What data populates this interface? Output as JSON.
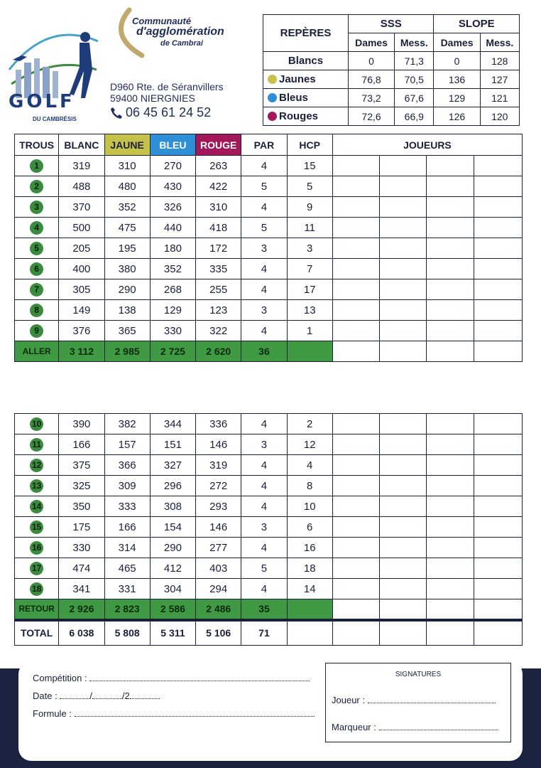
{
  "club": {
    "logo_word": "GOLF",
    "logo_sub": "DU CAMBRÉSIS",
    "partner_line1": "Communauté",
    "partner_line2": "d'agglomération",
    "partner_line3": "de Cambrai",
    "address_line1": "D960 Rte. de Séranvillers",
    "address_line2": "59400 NIERGNIES",
    "phone": "06 45 61 24 52",
    "phone_icon": "phone-icon"
  },
  "reperes": {
    "header": "REPÈRES",
    "sss": "SSS",
    "slope": "SLOPE",
    "dames": "Dames",
    "mess": "Mess.",
    "rows": [
      {
        "name": "Blancs",
        "sss_dames": "0",
        "sss_mess": "71,3",
        "slope_dames": "0",
        "slope_mess": "128"
      },
      {
        "name": "Jaunes",
        "sss_dames": "76,8",
        "sss_mess": "70,5",
        "slope_dames": "136",
        "slope_mess": "127"
      },
      {
        "name": "Bleus",
        "sss_dames": "73,2",
        "sss_mess": "67,6",
        "slope_dames": "129",
        "slope_mess": "121"
      },
      {
        "name": "Rouges",
        "sss_dames": "72,6",
        "sss_mess": "66,9",
        "slope_dames": "126",
        "slope_mess": "120"
      }
    ]
  },
  "colors": {
    "jaune": "#c5c14a",
    "bleu": "#2f8fd6",
    "rouge": "#a3185a",
    "green": "#3f9a43",
    "navy": "#1b2340"
  },
  "headers": {
    "trous": "TROUS",
    "blanc": "BLANC",
    "jaune": "JAUNE",
    "bleu": "BLEU",
    "rouge": "ROUGE",
    "par": "PAR",
    "hcp": "HCP",
    "joueurs": "JOUEURS"
  },
  "front": [
    [
      "1",
      "319",
      "310",
      "270",
      "263",
      "4",
      "15"
    ],
    [
      "2",
      "488",
      "480",
      "430",
      "422",
      "5",
      "5"
    ],
    [
      "3",
      "370",
      "352",
      "326",
      "310",
      "4",
      "9"
    ],
    [
      "4",
      "500",
      "475",
      "440",
      "418",
      "5",
      "11"
    ],
    [
      "5",
      "205",
      "195",
      "180",
      "172",
      "3",
      "3"
    ],
    [
      "6",
      "400",
      "380",
      "352",
      "335",
      "4",
      "7"
    ],
    [
      "7",
      "305",
      "290",
      "268",
      "255",
      "4",
      "17"
    ],
    [
      "8",
      "149",
      "138",
      "129",
      "123",
      "3",
      "13"
    ],
    [
      "9",
      "376",
      "365",
      "330",
      "322",
      "4",
      "1"
    ]
  ],
  "aller": [
    "ALLER",
    "3 112",
    "2 985",
    "2 725",
    "2 620",
    "36"
  ],
  "back": [
    [
      "10",
      "390",
      "382",
      "344",
      "336",
      "4",
      "2"
    ],
    [
      "11",
      "166",
      "157",
      "151",
      "146",
      "3",
      "12"
    ],
    [
      "12",
      "375",
      "366",
      "327",
      "319",
      "4",
      "4"
    ],
    [
      "13",
      "325",
      "309",
      "296",
      "272",
      "4",
      "8"
    ],
    [
      "14",
      "350",
      "333",
      "308",
      "293",
      "4",
      "10"
    ],
    [
      "15",
      "175",
      "166",
      "154",
      "146",
      "3",
      "6"
    ],
    [
      "16",
      "330",
      "314",
      "290",
      "277",
      "4",
      "16"
    ],
    [
      "17",
      "474",
      "465",
      "412",
      "403",
      "5",
      "18"
    ],
    [
      "18",
      "341",
      "331",
      "304",
      "294",
      "4",
      "14"
    ]
  ],
  "retour": [
    "RETOUR",
    "2 926",
    "2 823",
    "2 586",
    "2 486",
    "35"
  ],
  "total": [
    "TOTAL",
    "6 038",
    "5 808",
    "5 311",
    "5 106",
    "71"
  ],
  "form": {
    "competition": "Compétition :",
    "date": "Date :",
    "date_sep1": "/",
    "date_sep2": "/2",
    "formule": "Formule :"
  },
  "signatures": {
    "title": "SIGNATURES",
    "joueur": "Joueur :",
    "marqueur": "Marqueur :"
  }
}
